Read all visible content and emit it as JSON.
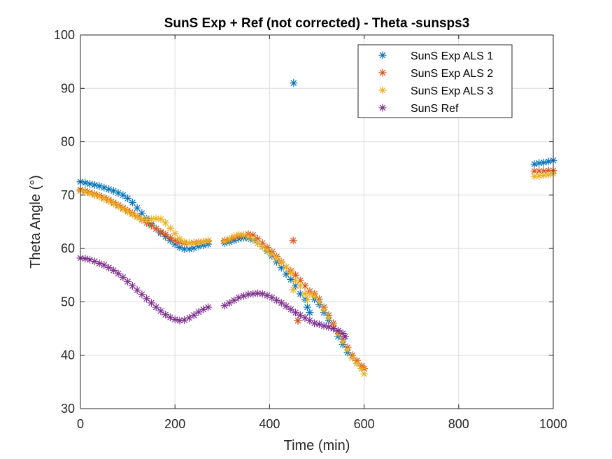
{
  "chart_data": {
    "type": "scatter",
    "title": "SunS Exp + Ref (not corrected) - Theta -sunsps3",
    "xlabel": "Time (min)",
    "ylabel": "Theta Angle (°)",
    "xlim": [
      0,
      1000
    ],
    "ylim": [
      30,
      100
    ],
    "xticks": [
      0,
      200,
      400,
      600,
      800,
      1000
    ],
    "yticks": [
      30,
      40,
      50,
      60,
      70,
      80,
      90,
      100
    ],
    "grid": true,
    "legend_position": "top-right",
    "marker": "asterisk",
    "series": [
      {
        "name": "SunS Exp ALS 1",
        "color": "#0072BD",
        "points": [
          [
            0,
            72.5
          ],
          [
            10,
            72.3
          ],
          [
            20,
            72.1
          ],
          [
            30,
            71.9
          ],
          [
            40,
            71.7
          ],
          [
            50,
            71.4
          ],
          [
            60,
            71.1
          ],
          [
            70,
            70.8
          ],
          [
            80,
            70.4
          ],
          [
            90,
            70.0
          ],
          [
            100,
            69.4
          ],
          [
            110,
            68.6
          ],
          [
            120,
            67.6
          ],
          [
            130,
            66.6
          ],
          [
            140,
            65.6
          ],
          [
            150,
            64.6
          ],
          [
            160,
            63.7
          ],
          [
            170,
            62.9
          ],
          [
            180,
            62.2
          ],
          [
            190,
            61.5
          ],
          [
            200,
            60.8
          ],
          [
            210,
            60.2
          ],
          [
            220,
            59.9
          ],
          [
            230,
            59.9
          ],
          [
            240,
            60.1
          ],
          [
            250,
            60.4
          ],
          [
            260,
            60.6
          ],
          [
            270,
            60.8
          ],
          [
            305,
            61.0
          ],
          [
            315,
            61.2
          ],
          [
            325,
            61.5
          ],
          [
            335,
            61.8
          ],
          [
            345,
            62.0
          ],
          [
            355,
            61.9
          ],
          [
            365,
            61.6
          ],
          [
            375,
            61.0
          ],
          [
            385,
            60.3
          ],
          [
            395,
            59.5
          ],
          [
            405,
            58.6
          ],
          [
            415,
            57.5
          ],
          [
            425,
            56.4
          ],
          [
            435,
            55.2
          ],
          [
            445,
            54.2
          ],
          [
            451,
            91.0
          ],
          [
            455,
            53.0
          ],
          [
            460,
            46.5
          ],
          [
            465,
            51.5
          ],
          [
            475,
            50.5
          ],
          [
            480,
            49.0
          ],
          [
            485,
            48.0
          ],
          [
            495,
            50.5
          ],
          [
            505,
            49.5
          ],
          [
            515,
            48.0
          ],
          [
            525,
            46.5
          ],
          [
            535,
            45.0
          ],
          [
            545,
            43.5
          ],
          [
            555,
            42.0
          ],
          [
            565,
            40.5
          ],
          [
            575,
            39.5
          ],
          [
            585,
            38.5
          ],
          [
            595,
            37.5
          ],
          [
            960,
            75.8
          ],
          [
            970,
            76.0
          ],
          [
            980,
            76.1
          ],
          [
            990,
            76.3
          ],
          [
            1000,
            76.5
          ]
        ]
      },
      {
        "name": "SunS Exp ALS 2",
        "color": "#D95319",
        "points": [
          [
            0,
            71.0
          ],
          [
            10,
            70.8
          ],
          [
            20,
            70.5
          ],
          [
            30,
            70.2
          ],
          [
            40,
            69.9
          ],
          [
            50,
            69.5
          ],
          [
            60,
            69.1
          ],
          [
            70,
            68.6
          ],
          [
            80,
            68.1
          ],
          [
            90,
            67.6
          ],
          [
            100,
            67.1
          ],
          [
            110,
            66.6
          ],
          [
            120,
            66.0
          ],
          [
            130,
            65.4
          ],
          [
            140,
            64.8
          ],
          [
            150,
            64.3
          ],
          [
            160,
            63.7
          ],
          [
            170,
            63.1
          ],
          [
            180,
            62.6
          ],
          [
            190,
            62.0
          ],
          [
            200,
            61.5
          ],
          [
            210,
            61.2
          ],
          [
            220,
            61.0
          ],
          [
            230,
            61.0
          ],
          [
            240,
            61.1
          ],
          [
            250,
            61.2
          ],
          [
            260,
            61.3
          ],
          [
            270,
            61.4
          ],
          [
            305,
            61.5
          ],
          [
            315,
            61.7
          ],
          [
            325,
            62.0
          ],
          [
            335,
            62.3
          ],
          [
            345,
            62.5
          ],
          [
            355,
            62.7
          ],
          [
            365,
            62.5
          ],
          [
            375,
            61.8
          ],
          [
            385,
            61.0
          ],
          [
            395,
            60.2
          ],
          [
            405,
            59.4
          ],
          [
            415,
            58.5
          ],
          [
            425,
            57.5
          ],
          [
            435,
            56.5
          ],
          [
            445,
            55.8
          ],
          [
            450,
            61.5
          ],
          [
            455,
            55.0
          ],
          [
            460,
            46.5
          ],
          [
            465,
            54.0
          ],
          [
            475,
            53.0
          ],
          [
            485,
            52.0
          ],
          [
            495,
            51.5
          ],
          [
            505,
            50.5
          ],
          [
            515,
            49.0
          ],
          [
            525,
            47.5
          ],
          [
            535,
            46.0
          ],
          [
            545,
            44.5
          ],
          [
            555,
            43.0
          ],
          [
            565,
            41.5
          ],
          [
            575,
            40.0
          ],
          [
            585,
            39.0
          ],
          [
            595,
            38.0
          ],
          [
            600,
            37.5
          ],
          [
            960,
            74.5
          ],
          [
            970,
            74.5
          ],
          [
            980,
            74.5
          ],
          [
            990,
            74.6
          ],
          [
            1000,
            74.6
          ]
        ]
      },
      {
        "name": "SunS Exp ALS 3",
        "color": "#EDB120",
        "points": [
          [
            0,
            70.8
          ],
          [
            10,
            70.6
          ],
          [
            20,
            70.3
          ],
          [
            30,
            70.0
          ],
          [
            40,
            69.7
          ],
          [
            50,
            69.3
          ],
          [
            60,
            68.9
          ],
          [
            70,
            68.4
          ],
          [
            80,
            67.9
          ],
          [
            90,
            67.4
          ],
          [
            100,
            66.9
          ],
          [
            110,
            66.4
          ],
          [
            120,
            65.9
          ],
          [
            130,
            65.5
          ],
          [
            140,
            65.4
          ],
          [
            150,
            65.5
          ],
          [
            160,
            65.6
          ],
          [
            170,
            65.5
          ],
          [
            180,
            64.8
          ],
          [
            190,
            63.8
          ],
          [
            200,
            62.8
          ],
          [
            210,
            61.8
          ],
          [
            220,
            61.2
          ],
          [
            230,
            61.0
          ],
          [
            240,
            61.0
          ],
          [
            250,
            61.1
          ],
          [
            260,
            61.3
          ],
          [
            270,
            61.5
          ],
          [
            305,
            61.3
          ],
          [
            315,
            61.8
          ],
          [
            325,
            62.3
          ],
          [
            335,
            62.6
          ],
          [
            345,
            62.5
          ],
          [
            355,
            62.2
          ],
          [
            365,
            61.7
          ],
          [
            375,
            61.0
          ],
          [
            385,
            60.3
          ],
          [
            395,
            59.6
          ],
          [
            405,
            58.9
          ],
          [
            415,
            58.2
          ],
          [
            425,
            57.4
          ],
          [
            435,
            56.5
          ],
          [
            445,
            55.5
          ],
          [
            450,
            52.3
          ],
          [
            455,
            54.0
          ],
          [
            465,
            53.0
          ],
          [
            475,
            51.5
          ],
          [
            480,
            50.5
          ],
          [
            485,
            51.5
          ],
          [
            495,
            51.0
          ],
          [
            505,
            50.0
          ],
          [
            515,
            48.5
          ],
          [
            525,
            47.0
          ],
          [
            535,
            45.5
          ],
          [
            545,
            44.0
          ],
          [
            555,
            42.5
          ],
          [
            565,
            41.0
          ],
          [
            575,
            39.5
          ],
          [
            585,
            38.5
          ],
          [
            595,
            37.5
          ],
          [
            600,
            36.5
          ],
          [
            960,
            73.5
          ],
          [
            970,
            73.6
          ],
          [
            980,
            73.7
          ],
          [
            990,
            73.8
          ],
          [
            1000,
            74.0
          ]
        ]
      },
      {
        "name": "SunS Ref",
        "color": "#7E2F8E",
        "points": [
          [
            0,
            58.2
          ],
          [
            10,
            58.1
          ],
          [
            20,
            57.9
          ],
          [
            30,
            57.6
          ],
          [
            40,
            57.2
          ],
          [
            50,
            56.9
          ],
          [
            60,
            56.4
          ],
          [
            70,
            55.9
          ],
          [
            80,
            55.3
          ],
          [
            90,
            54.6
          ],
          [
            100,
            53.8
          ],
          [
            110,
            53.0
          ],
          [
            120,
            52.2
          ],
          [
            130,
            51.4
          ],
          [
            140,
            50.6
          ],
          [
            150,
            49.8
          ],
          [
            160,
            49.0
          ],
          [
            170,
            48.3
          ],
          [
            180,
            47.6
          ],
          [
            190,
            47.1
          ],
          [
            200,
            46.7
          ],
          [
            210,
            46.5
          ],
          [
            220,
            46.6
          ],
          [
            230,
            47.0
          ],
          [
            240,
            47.5
          ],
          [
            250,
            48.1
          ],
          [
            260,
            48.6
          ],
          [
            270,
            49.0
          ],
          [
            305,
            49.3
          ],
          [
            315,
            49.8
          ],
          [
            325,
            50.3
          ],
          [
            335,
            50.8
          ],
          [
            345,
            51.1
          ],
          [
            355,
            51.4
          ],
          [
            365,
            51.5
          ],
          [
            375,
            51.6
          ],
          [
            385,
            51.5
          ],
          [
            395,
            51.2
          ],
          [
            405,
            50.8
          ],
          [
            415,
            50.3
          ],
          [
            425,
            49.8
          ],
          [
            435,
            49.2
          ],
          [
            445,
            48.6
          ],
          [
            455,
            48.0
          ],
          [
            465,
            47.5
          ],
          [
            475,
            47.0
          ],
          [
            485,
            46.5
          ],
          [
            495,
            46.0
          ],
          [
            505,
            45.8
          ],
          [
            515,
            45.5
          ],
          [
            525,
            45.3
          ],
          [
            535,
            45.0
          ],
          [
            545,
            44.6
          ],
          [
            555,
            44.1
          ],
          [
            560,
            43.5
          ]
        ]
      }
    ]
  }
}
